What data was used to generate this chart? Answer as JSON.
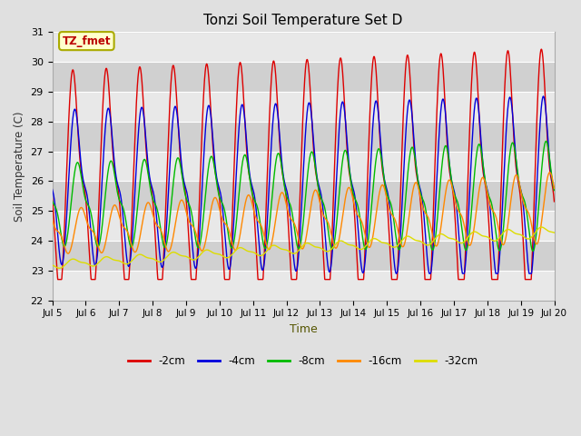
{
  "title": "Tonzi Soil Temperature Set D",
  "xlabel": "Time",
  "ylabel": "Soil Temperature (C)",
  "ylim": [
    22.0,
    31.0
  ],
  "yticks": [
    22.0,
    23.0,
    24.0,
    25.0,
    26.0,
    27.0,
    28.0,
    29.0,
    30.0,
    31.0
  ],
  "legend_label": "TZ_fmet",
  "series_colors": {
    "-2cm": "#dd0000",
    "-4cm": "#0000dd",
    "-8cm": "#00bb00",
    "-16cm": "#ff8800",
    "-32cm": "#dddd00"
  },
  "series_order": [
    "-2cm",
    "-4cm",
    "-8cm",
    "-16cm",
    "-32cm"
  ],
  "fig_bg_color": "#e0e0e0",
  "plot_bg_light": "#e8e8e8",
  "plot_bg_dark": "#d0d0d0",
  "n_days": 15,
  "start_day": 5,
  "points_per_day": 144,
  "params": {
    "-2cm": {
      "base": 26.0,
      "amp": 4.0,
      "amp_growth": 0.8,
      "phase": 0.0,
      "base_rise": 0.0,
      "min_clip": 22.7
    },
    "-4cm": {
      "base": 25.8,
      "amp": 2.8,
      "amp_growth": 0.5,
      "phase": 0.06,
      "base_rise": 0.0,
      "min_clip": 22.9
    },
    "-8cm": {
      "base": 25.2,
      "amp": 1.5,
      "amp_growth": 0.5,
      "phase": 0.14,
      "base_rise": 0.3,
      "min_clip": 23.2
    },
    "-16cm": {
      "base": 24.3,
      "amp": 0.8,
      "amp_growth": 0.5,
      "phase": 0.25,
      "base_rise": 0.8,
      "min_clip": 23.3
    },
    "-32cm": {
      "base": 23.2,
      "amp": 0.15,
      "amp_growth": 0.05,
      "phase": 0.0,
      "base_rise": 1.1,
      "min_clip": 23.0
    }
  }
}
